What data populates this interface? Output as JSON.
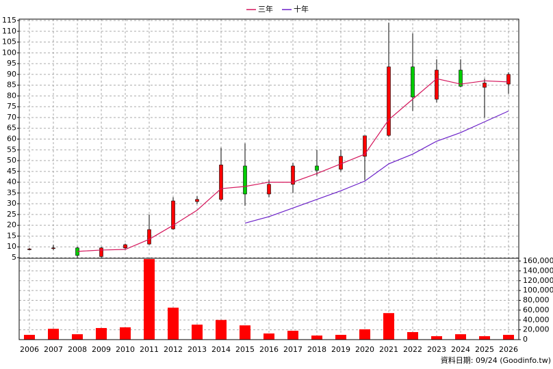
{
  "chart_data": [
    {
      "type": "candlestick",
      "open": [
        9,
        9.5,
        9.5,
        5.5,
        9.5,
        11.3,
        18.3,
        31,
        32,
        47.5,
        34.5,
        39,
        47.5,
        46,
        52,
        61.7,
        93.5,
        78.5,
        92,
        84,
        85.5
      ],
      "high": [
        9.5,
        11,
        10,
        10,
        11.5,
        25,
        33,
        33.5,
        56,
        58,
        41,
        49,
        55,
        55,
        61.5,
        114,
        109,
        97,
        97,
        88,
        91
      ],
      "low": [
        8.5,
        8.5,
        5,
        5,
        9,
        11,
        18,
        30,
        31,
        29,
        33,
        35,
        43,
        45,
        41,
        61,
        73,
        77,
        84,
        70,
        81
      ],
      "close": [
        9,
        9.5,
        6,
        9.5,
        11,
        18,
        31.3,
        32,
        48,
        34.5,
        39,
        47.5,
        45.5,
        52,
        61.5,
        93.5,
        79.5,
        92,
        84.5,
        86,
        90
      ],
      "up_color": "#ff0000",
      "down_color": "#00cc00",
      "series": [
        {
          "name": "三年",
          "color": "#d4145a",
          "values": [
            null,
            null,
            7.9,
            8.5,
            8.8,
            13.5,
            20,
            27,
            37,
            38,
            40,
            40,
            44,
            48.5,
            53,
            69,
            78.5,
            88,
            85.5,
            87,
            86.5
          ]
        },
        {
          "name": "十年",
          "color": "#6a1fc8",
          "values": [
            null,
            null,
            null,
            null,
            null,
            null,
            null,
            null,
            null,
            21,
            24,
            28,
            32,
            36,
            40.5,
            48.5,
            53,
            59,
            63,
            68,
            73
          ]
        }
      ],
      "ylim": [
        5,
        115
      ],
      "yticks": [
        5,
        10,
        15,
        20,
        25,
        30,
        35,
        40,
        45,
        50,
        55,
        60,
        65,
        70,
        75,
        80,
        85,
        90,
        95,
        100,
        105,
        110,
        115
      ],
      "grid": true
    },
    {
      "type": "bar",
      "categories": [
        "2006",
        "2007",
        "2008",
        "2009",
        "2010",
        "2011",
        "2012",
        "2013",
        "2014",
        "2015",
        "2016",
        "2017",
        "2018",
        "2019",
        "2020",
        "2021",
        "2022",
        "2023",
        "2024",
        "2025",
        "2026"
      ],
      "values": [
        9700,
        22000,
        11000,
        23600,
        25000,
        164000,
        65000,
        30500,
        40000,
        29000,
        12500,
        18000,
        8300,
        9700,
        21000,
        54000,
        15300,
        7000,
        11000,
        7000,
        9700
      ],
      "color": "#ff0000",
      "ylim": [
        0,
        160000
      ],
      "yticks": [
        0,
        {
          "value": 20000,
          "label": "20,000"
        },
        {
          "value": 40000,
          "label": "40,000"
        },
        {
          "value": 60000,
          "label": "60,000"
        },
        {
          "value": 80000,
          "label": "80,000"
        },
        {
          "value": 100000,
          "label": "100,000"
        },
        {
          "value": 120000,
          "label": "120,000"
        },
        {
          "value": 140000,
          "label": "140,000"
        },
        {
          "value": 160000,
          "label": "160,000"
        }
      ],
      "grid": true,
      "note": "資料日期: 09/24  (Goodinfo.tw)"
    }
  ]
}
